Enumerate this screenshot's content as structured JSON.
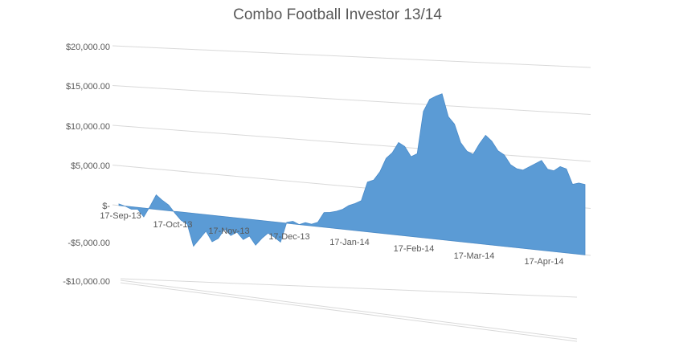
{
  "chart_data": {
    "type": "area",
    "title": "Combo Football Investor 13/14",
    "xlabel": "",
    "ylabel": "",
    "y_tick_labels": [
      "$20,000.00",
      "$15,000.00",
      "$10,000.00",
      "$5,000.00",
      "$-",
      "-$5,000.00",
      "-$10,000.00"
    ],
    "y_tick_values": [
      20000,
      15000,
      10000,
      5000,
      0,
      -5000,
      -10000
    ],
    "x_tick_labels": [
      "17-Sep-13",
      "17-Oct-13",
      "17-Nov-13",
      "17-Dec-13",
      "17-Jan-14",
      "17-Feb-14",
      "17-Mar-14",
      "17-Apr-14"
    ],
    "ylim": [
      -10000,
      20000
    ],
    "grid": true,
    "legend": "none",
    "perspective": "3d",
    "color": "#5b9bd5",
    "x": [
      0,
      3,
      6,
      9,
      12,
      15,
      18,
      21,
      24,
      27,
      30,
      33,
      36,
      39,
      42,
      45,
      48,
      51,
      54,
      57,
      60,
      63,
      66,
      69,
      72,
      75,
      78,
      81,
      84,
      87,
      90,
      93,
      96,
      99,
      102,
      105,
      108,
      111,
      114,
      117,
      120,
      123,
      126,
      129,
      132,
      135,
      138,
      141,
      144,
      147,
      150,
      153,
      156,
      159,
      162,
      165,
      168,
      171,
      174,
      177,
      180,
      183,
      186,
      189,
      192,
      195,
      198,
      201,
      204,
      207,
      210,
      213,
      216,
      219,
      222,
      225
    ],
    "values": [
      200,
      0,
      -300,
      -200,
      -1100,
      300,
      1800,
      1200,
      700,
      -200,
      -1000,
      -1400,
      -4000,
      -3000,
      -2000,
      -3200,
      -2700,
      -1500,
      -2200,
      -1700,
      -2500,
      -2000,
      -3000,
      -2100,
      -1400,
      -1800,
      -2300,
      100,
      300,
      0,
      300,
      200,
      500,
      1700,
      1800,
      2000,
      2300,
      2800,
      3100,
      3500,
      5700,
      6000,
      7000,
      8600,
      9300,
      10500,
      10100,
      9000,
      9400,
      14200,
      15600,
      16000,
      16300,
      13800,
      13000,
      11000,
      10100,
      9800,
      11000,
      12000,
      11400,
      10400,
      10000,
      9000,
      8600,
      8500,
      8900,
      9300,
      9700,
      8800,
      8700,
      9200,
      9000,
      7400,
      7600,
      7500
    ]
  }
}
